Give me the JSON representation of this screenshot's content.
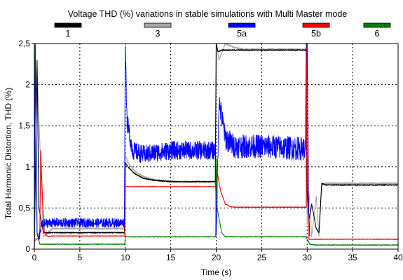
{
  "chart_data": {
    "type": "line",
    "title": "Voltage THD (%) variations in stable simulations with Multi Master mode",
    "xlabel": "Time (s)",
    "ylabel": "Total Harmonic Distortion, THD  (%)",
    "xlim": [
      0,
      40
    ],
    "ylim": [
      0,
      2.5
    ],
    "x_ticks": [
      0,
      5,
      10,
      15,
      20,
      25,
      30,
      35,
      40
    ],
    "x_tick_labels": [
      "0",
      "5",
      "10",
      "15",
      "20",
      "25",
      "30",
      "35",
      "40"
    ],
    "y_ticks": [
      0,
      0.5,
      1,
      1.5,
      2,
      2.5
    ],
    "y_tick_labels": [
      "0",
      "0,5",
      "1",
      "1,5",
      "2",
      "2,5"
    ],
    "grid": true,
    "legend_position": "top",
    "series": [
      {
        "name": "1",
        "color": "#000000",
        "noise": 0.006,
        "x": [
          0,
          0.3,
          0.5,
          1,
          1.5,
          2,
          9.9,
          10,
          10.3,
          11,
          12,
          13,
          14,
          15,
          16,
          19.9,
          20,
          20.2,
          20.6,
          21,
          22,
          29.9,
          30,
          30.2,
          30.5,
          31,
          31.3,
          31.6,
          32,
          40
        ],
        "y": [
          0,
          2.3,
          0.5,
          0.2,
          0.2,
          0.2,
          0.2,
          1.05,
          1.0,
          0.92,
          0.86,
          0.84,
          0.83,
          0.82,
          0.82,
          0.82,
          2.5,
          2.4,
          2.42,
          2.42,
          2.42,
          2.42,
          0.7,
          0.35,
          0.55,
          0.25,
          0.2,
          0.8,
          0.78,
          0.78
        ]
      },
      {
        "name": "3",
        "color": "#a8a8a8",
        "noise": 0.01,
        "x": [
          0,
          0.3,
          0.6,
          1,
          2,
          9.9,
          10,
          10.3,
          11,
          12,
          13,
          14,
          16,
          19.9,
          20,
          20.3,
          21,
          22,
          23,
          29.9,
          30,
          30.2,
          30.5,
          31,
          31.3,
          31.6,
          32,
          40
        ],
        "y": [
          0,
          2.2,
          1.3,
          0.15,
          0.25,
          0.25,
          1.15,
          1.05,
          0.95,
          0.88,
          0.85,
          0.83,
          0.82,
          0.82,
          2.5,
          2.3,
          2.5,
          2.45,
          2.43,
          2.43,
          0.3,
          0.7,
          0.15,
          0.65,
          0.15,
          0.78,
          0.8,
          0.8
        ]
      },
      {
        "name": "5a",
        "color": "#0000ff",
        "noise": 0.08,
        "x": [
          0,
          0.1,
          0.3,
          0.5,
          0.8,
          1.5,
          9.9,
          10,
          10.2,
          10.8,
          12,
          15,
          19.9,
          20,
          20.3,
          21,
          22,
          25,
          29.8,
          29.9,
          30,
          30.15,
          30.3
        ],
        "y": [
          0,
          2.5,
          0.2,
          0.12,
          0.3,
          0.32,
          0.32,
          2.5,
          1.55,
          1.2,
          1.15,
          1.2,
          1.2,
          0.15,
          1.8,
          1.35,
          1.25,
          1.25,
          1.22,
          2.5,
          2.5,
          0.5,
          0.15
        ]
      },
      {
        "name": "5b",
        "color": "#ff0000",
        "noise": 0.003,
        "x": [
          0,
          0.6,
          0.7,
          0.9,
          1.1,
          1.5,
          1.9,
          9.95,
          10,
          19.95,
          20,
          20.5,
          21,
          21.5,
          22,
          29.9,
          29.95,
          30,
          30.2,
          40
        ],
        "y": [
          0.1,
          0.15,
          1.2,
          0.6,
          0.2,
          0.15,
          0.16,
          0.16,
          0.76,
          0.76,
          1.0,
          0.7,
          0.55,
          0.52,
          0.51,
          0.51,
          2.5,
          2.5,
          0.12,
          0.12
        ]
      },
      {
        "name": "6",
        "color": "#008000",
        "noise": 0.004,
        "x": [
          0,
          0.1,
          0.3,
          0.6,
          9.95,
          10,
          10.3,
          11,
          19.95,
          20,
          20.1,
          20.6,
          21,
          29.9,
          30,
          30.3,
          31,
          40
        ],
        "y": [
          0,
          2.5,
          0.2,
          0.06,
          0.06,
          0.16,
          0.15,
          0.15,
          0.15,
          1.1,
          0.5,
          0.2,
          0.15,
          0.15,
          0.12,
          0.06,
          0.05,
          0.05
        ]
      }
    ]
  }
}
